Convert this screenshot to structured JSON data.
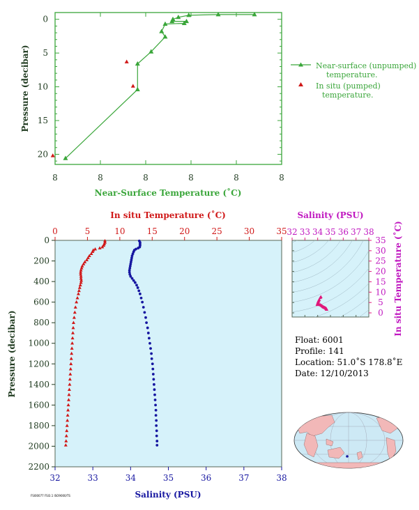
{
  "chart_data": [
    {
      "type": "line",
      "xlabel": "Near-Surface Temperature (˚C)",
      "ylabel": "Pressure (decibar)",
      "x_tick_labels": [
        "8",
        "8",
        "8",
        "8",
        "8",
        "8"
      ],
      "y_ticks": [
        0,
        5,
        10,
        15,
        20
      ],
      "y_tick_labels": [
        "0",
        "5",
        "10",
        "15",
        "20"
      ],
      "xlim": [
        0,
        5
      ],
      "ylim": [
        21.5,
        -1.0
      ],
      "legend": {
        "placement": "right",
        "unpumped": "Near-surface (unpumped) temperature.",
        "pumped": "In situ (pumped) temperature."
      },
      "series": [
        {
          "key": "unpumped",
          "color": "#3aa63a",
          "marker": "triangle",
          "points": [
            [
              0.23,
              20.6
            ],
            [
              1.82,
              10.4
            ],
            [
              1.82,
              6.6
            ],
            [
              2.12,
              4.8
            ],
            [
              2.43,
              2.6
            ],
            [
              2.35,
              1.8
            ],
            [
              2.43,
              0.7
            ],
            [
              2.85,
              0.6
            ],
            [
              2.9,
              0.3
            ],
            [
              2.58,
              0.3
            ],
            [
              2.6,
              0.0
            ],
            [
              2.72,
              -0.3
            ],
            [
              2.95,
              -0.6
            ],
            [
              3.6,
              -0.7
            ],
            [
              4.4,
              -0.7
            ]
          ]
        },
        {
          "key": "pumped",
          "color": "#d01818",
          "marker": "triangle",
          "points": [
            [
              1.58,
              6.3
            ],
            [
              1.72,
              9.9
            ],
            [
              -0.05,
              20.2
            ]
          ]
        }
      ]
    },
    {
      "type": "scatter",
      "ylabel": "Pressure (decibar)",
      "y_ticks": [
        0,
        200,
        400,
        600,
        800,
        1000,
        1200,
        1400,
        1600,
        1800,
        2000,
        2200
      ],
      "y_tick_labels": [
        "0",
        "200",
        "400",
        "600",
        "800",
        "1000",
        "1200",
        "1400",
        "1600",
        "1800",
        "2000",
        "2200"
      ],
      "ylim": [
        2200,
        0
      ],
      "top_axis": {
        "label": "In situ Temperature (˚C)",
        "color": "#d01818",
        "lim": [
          0,
          35
        ],
        "ticks": [
          0,
          5,
          10,
          15,
          20,
          25,
          30,
          35
        ],
        "tick_labels": [
          "0",
          "5",
          "10",
          "15",
          "20",
          "25",
          "30",
          "35"
        ]
      },
      "bottom_axis": {
        "label": "Salinity (PSU)",
        "color": "#1616a0",
        "lim": [
          32,
          38
        ],
        "ticks": [
          32,
          33,
          34,
          35,
          36,
          37,
          38
        ],
        "tick_labels": [
          "32",
          "33",
          "34",
          "35",
          "36",
          "37",
          "38"
        ]
      },
      "background": "#d6f2fa",
      "series": [
        {
          "key": "temperature",
          "axis": "top",
          "color": "#d01818",
          "marker": "triangle",
          "points": [
            [
              7.7,
              5
            ],
            [
              7.7,
              20
            ],
            [
              7.6,
              35
            ],
            [
              7.5,
              50
            ],
            [
              7.3,
              65
            ],
            [
              6.9,
              75
            ],
            [
              6.2,
              85
            ],
            [
              5.9,
              95
            ],
            [
              5.8,
              110
            ],
            [
              5.6,
              130
            ],
            [
              5.3,
              150
            ],
            [
              5.1,
              170
            ],
            [
              4.9,
              190
            ],
            [
              4.6,
              210
            ],
            [
              4.4,
              230
            ],
            [
              4.2,
              250
            ],
            [
              4.1,
              270
            ],
            [
              4.0,
              290
            ],
            [
              3.95,
              310
            ],
            [
              3.95,
              330
            ],
            [
              4.0,
              350
            ],
            [
              4.0,
              370
            ],
            [
              4.05,
              390
            ],
            [
              4.0,
              410
            ],
            [
              3.9,
              435
            ],
            [
              3.8,
              460
            ],
            [
              3.7,
              490
            ],
            [
              3.6,
              520
            ],
            [
              3.45,
              560
            ],
            [
              3.3,
              600
            ],
            [
              3.15,
              650
            ],
            [
              3.05,
              700
            ],
            [
              2.95,
              750
            ],
            [
              2.85,
              800
            ],
            [
              2.8,
              850
            ],
            [
              2.75,
              900
            ],
            [
              2.7,
              950
            ],
            [
              2.65,
              1000
            ],
            [
              2.6,
              1050
            ],
            [
              2.55,
              1100
            ],
            [
              2.5,
              1150
            ],
            [
              2.45,
              1200
            ],
            [
              2.4,
              1250
            ],
            [
              2.35,
              1300
            ],
            [
              2.3,
              1350
            ],
            [
              2.25,
              1400
            ],
            [
              2.2,
              1450
            ],
            [
              2.15,
              1500
            ],
            [
              2.1,
              1550
            ],
            [
              2.05,
              1600
            ],
            [
              2.0,
              1650
            ],
            [
              1.95,
              1700
            ],
            [
              1.9,
              1750
            ],
            [
              1.85,
              1800
            ],
            [
              1.8,
              1850
            ],
            [
              1.75,
              1900
            ],
            [
              1.7,
              1950
            ],
            [
              1.65,
              1990
            ]
          ]
        },
        {
          "key": "salinity",
          "axis": "bottom",
          "color": "#1616a0",
          "marker": "circle",
          "points": [
            [
              34.23,
              5
            ],
            [
              34.25,
              20
            ],
            [
              34.25,
              35
            ],
            [
              34.25,
              50
            ],
            [
              34.24,
              65
            ],
            [
              34.2,
              75
            ],
            [
              34.14,
              85
            ],
            [
              34.1,
              95
            ],
            [
              34.08,
              110
            ],
            [
              34.06,
              130
            ],
            [
              34.04,
              150
            ],
            [
              34.03,
              170
            ],
            [
              34.02,
              190
            ],
            [
              34.01,
              210
            ],
            [
              34.0,
              230
            ],
            [
              33.99,
              250
            ],
            [
              33.98,
              270
            ],
            [
              33.97,
              290
            ],
            [
              33.97,
              310
            ],
            [
              33.98,
              330
            ],
            [
              34.0,
              350
            ],
            [
              34.04,
              370
            ],
            [
              34.08,
              390
            ],
            [
              34.12,
              410
            ],
            [
              34.16,
              435
            ],
            [
              34.19,
              460
            ],
            [
              34.22,
              490
            ],
            [
              34.25,
              520
            ],
            [
              34.28,
              560
            ],
            [
              34.31,
              600
            ],
            [
              34.34,
              650
            ],
            [
              34.37,
              700
            ],
            [
              34.4,
              750
            ],
            [
              34.42,
              800
            ],
            [
              34.45,
              850
            ],
            [
              34.47,
              900
            ],
            [
              34.49,
              950
            ],
            [
              34.51,
              1000
            ],
            [
              34.53,
              1050
            ],
            [
              34.55,
              1100
            ],
            [
              34.56,
              1150
            ],
            [
              34.58,
              1200
            ],
            [
              34.59,
              1250
            ],
            [
              34.6,
              1300
            ],
            [
              34.61,
              1350
            ],
            [
              34.62,
              1400
            ],
            [
              34.63,
              1450
            ],
            [
              34.64,
              1500
            ],
            [
              34.65,
              1550
            ],
            [
              34.66,
              1600
            ],
            [
              34.67,
              1650
            ],
            [
              34.67,
              1700
            ],
            [
              34.68,
              1750
            ],
            [
              34.68,
              1800
            ],
            [
              34.69,
              1850
            ],
            [
              34.69,
              1900
            ],
            [
              34.7,
              1950
            ],
            [
              34.7,
              1990
            ]
          ]
        }
      ]
    },
    {
      "type": "scatter",
      "xlabel": "Salinity (PSU)",
      "ylabel": "In situ Temperature (˚C)",
      "xlim": [
        32,
        38
      ],
      "ylim": [
        -2,
        35
      ],
      "x_ticks": [
        32,
        33,
        34,
        35,
        36,
        37,
        38
      ],
      "x_tick_labels": [
        "32",
        "33",
        "34",
        "35",
        "36",
        "37",
        "38"
      ],
      "y_ticks": [
        0,
        5,
        10,
        15,
        20,
        25,
        30,
        35
      ],
      "y_tick_labels": [
        "0",
        "5",
        "10",
        "15",
        "20",
        "25",
        "30",
        "35"
      ],
      "color": "#e0187a",
      "points": [
        [
          34.25,
          7.7
        ],
        [
          34.2,
          7.3
        ],
        [
          34.12,
          6.4
        ],
        [
          34.08,
          5.9
        ],
        [
          34.05,
          5.5
        ],
        [
          34.03,
          5.1
        ],
        [
          34.01,
          4.7
        ],
        [
          33.99,
          4.3
        ],
        [
          33.97,
          4.0
        ],
        [
          33.98,
          3.95
        ],
        [
          34.04,
          4.0
        ],
        [
          34.12,
          4.0
        ],
        [
          34.2,
          3.85
        ],
        [
          34.28,
          3.6
        ],
        [
          34.34,
          3.3
        ],
        [
          34.4,
          3.0
        ],
        [
          34.45,
          2.8
        ],
        [
          34.5,
          2.65
        ],
        [
          34.55,
          2.5
        ],
        [
          34.6,
          2.35
        ],
        [
          34.64,
          2.2
        ],
        [
          34.67,
          2.0
        ],
        [
          34.69,
          1.85
        ],
        [
          34.7,
          1.65
        ]
      ]
    }
  ],
  "info": {
    "float": "Float: 6001",
    "profile": "Profile: 141",
    "location": "Location: 51.0˚S 178.8˚E",
    "date": "Date: 12/10/2013"
  },
  "footer": "FSI00077 FSI3.1 ISO9000/TS"
}
